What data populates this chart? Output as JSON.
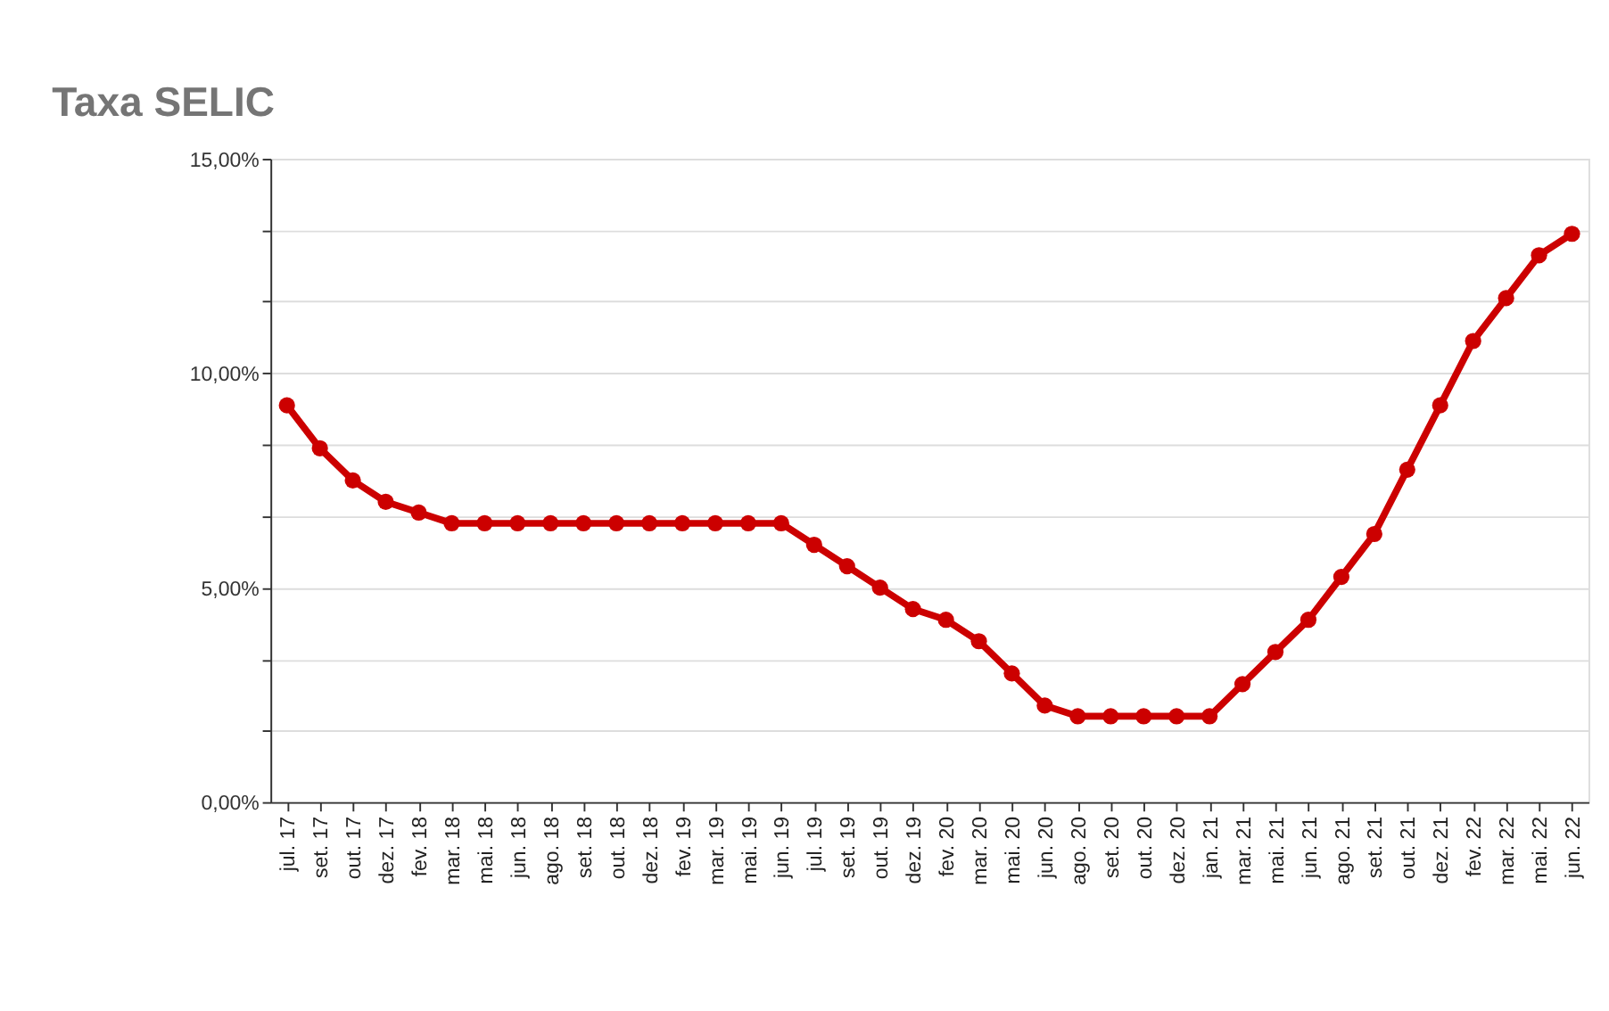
{
  "chart_data": {
    "type": "line",
    "title": "Taxa SELIC",
    "categories": [
      "jul. 17",
      "set. 17",
      "out. 17",
      "dez. 17",
      "fev. 18",
      "mar. 18",
      "mai. 18",
      "jun. 18",
      "ago. 18",
      "set. 18",
      "out. 18",
      "dez. 18",
      "fev. 19",
      "mar. 19",
      "mai. 19",
      "jun. 19",
      "jul. 19",
      "set. 19",
      "out. 19",
      "dez. 19",
      "fev. 20",
      "mar. 20",
      "mai. 20",
      "jun. 20",
      "ago. 20",
      "set. 20",
      "out. 20",
      "dez. 20",
      "jan. 21",
      "mar. 21",
      "mai. 21",
      "jun. 21",
      "ago. 21",
      "set. 21",
      "out. 21",
      "dez. 21",
      "fev. 22",
      "mar. 22",
      "mai. 22",
      "jun. 22"
    ],
    "series": [
      {
        "color": "#cc0000",
        "values": [
          9.25,
          8.25,
          7.5,
          7.0,
          6.75,
          6.5,
          6.5,
          6.5,
          6.5,
          6.5,
          6.5,
          6.5,
          6.5,
          6.5,
          6.5,
          6.5,
          6.0,
          5.5,
          5.0,
          4.5,
          4.25,
          3.75,
          3.0,
          2.25,
          2.0,
          2.0,
          2.0,
          2.0,
          2.0,
          2.75,
          3.5,
          4.25,
          5.25,
          6.25,
          7.75,
          9.25,
          10.75,
          11.75,
          12.75,
          13.25
        ]
      }
    ],
    "ylim": [
      0,
      15
    ],
    "yticks": [
      {
        "value": 0,
        "label": "0,00%"
      },
      {
        "value": 1.67,
        "label": null
      },
      {
        "value": 3.33,
        "label": null
      },
      {
        "value": 5,
        "label": "5,00%"
      },
      {
        "value": 6.67,
        "label": null
      },
      {
        "value": 8.33,
        "label": null
      },
      {
        "value": 10,
        "label": "10,00%"
      },
      {
        "value": 11.67,
        "label": null
      },
      {
        "value": 13.33,
        "label": null
      },
      {
        "value": 15,
        "label": "15,00%"
      }
    ],
    "grid": "y",
    "marker": "circle",
    "line_style": "solid"
  }
}
